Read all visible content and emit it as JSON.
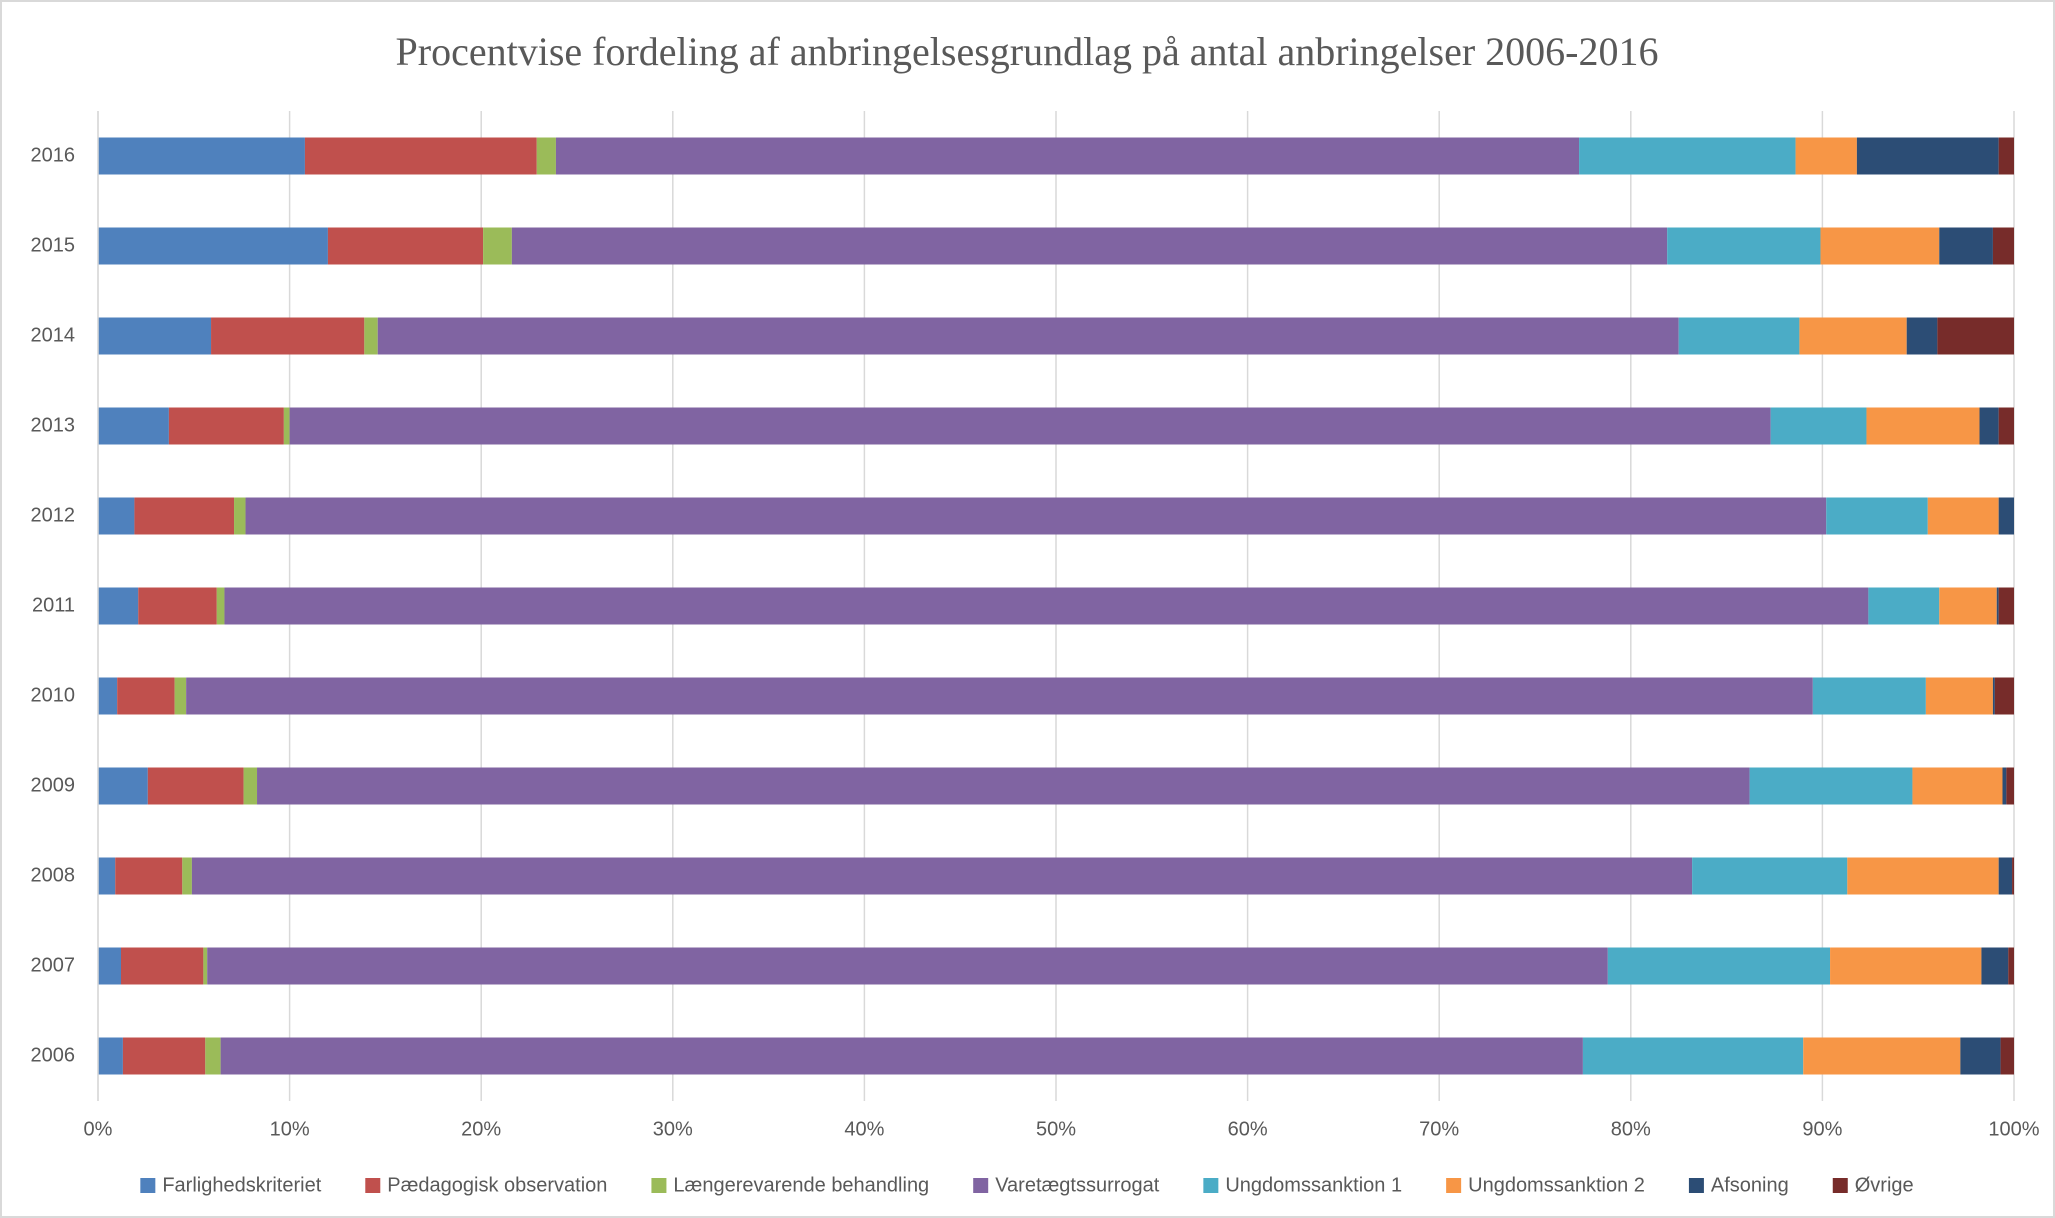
{
  "chart_data": {
    "type": "stacked-bar-horizontal",
    "title": "Procentvise fordeling af anbringelsesgrundlag på antal anbringelser 2006-2016",
    "categories": [
      "2006",
      "2007",
      "2008",
      "2009",
      "2010",
      "2011",
      "2012",
      "2013",
      "2014",
      "2015",
      "2016"
    ],
    "series": [
      {
        "name": "Farlighedskriteriet",
        "color": "#4f81bd",
        "values": [
          1.3,
          1.2,
          0.9,
          2.6,
          1.0,
          2.1,
          1.9,
          3.7,
          5.9,
          12.0,
          10.8
        ]
      },
      {
        "name": "Pædagogisk observation",
        "color": "#c0504d",
        "values": [
          4.3,
          4.3,
          3.5,
          5.0,
          3.0,
          4.1,
          5.2,
          6.0,
          8.0,
          8.1,
          12.1
        ]
      },
      {
        "name": "Længerevarende behandling",
        "color": "#9bbb59",
        "values": [
          0.8,
          0.2,
          0.5,
          0.7,
          0.6,
          0.4,
          0.6,
          0.3,
          0.7,
          1.5,
          1.0
        ]
      },
      {
        "name": "Varetægtssurrogat",
        "color": "#8064a2",
        "values": [
          71.1,
          73.1,
          78.3,
          77.9,
          84.9,
          85.8,
          82.5,
          77.3,
          67.9,
          60.3,
          53.4
        ]
      },
      {
        "name": "Ungdomssanktion 1",
        "color": "#4bacc6",
        "values": [
          11.5,
          11.6,
          8.1,
          8.5,
          5.9,
          3.7,
          5.3,
          5.0,
          6.3,
          8.0,
          11.3
        ]
      },
      {
        "name": "Ungdomssanktion 2",
        "color": "#f79646",
        "values": [
          8.2,
          7.9,
          7.9,
          4.7,
          3.5,
          3.0,
          3.7,
          5.9,
          5.6,
          6.2,
          3.2
        ]
      },
      {
        "name": "Afsoning",
        "color": "#2c4d75",
        "values": [
          2.1,
          1.4,
          0.7,
          0.2,
          0.1,
          0.1,
          0.8,
          1.0,
          1.6,
          2.8,
          7.4
        ]
      },
      {
        "name": "Øvrige",
        "color": "#772c2a",
        "values": [
          0.7,
          0.3,
          0.1,
          0.4,
          1.0,
          0.8,
          0,
          0.8,
          4.0,
          1.1,
          0.8
        ]
      }
    ],
    "xlim": [
      0,
      100
    ],
    "xticks": [
      {
        "value": 0,
        "label": "0%"
      },
      {
        "value": 10,
        "label": "10%"
      },
      {
        "value": 20,
        "label": "20%"
      },
      {
        "value": 30,
        "label": "30%"
      },
      {
        "value": 40,
        "label": "40%"
      },
      {
        "value": 50,
        "label": "50%"
      },
      {
        "value": 60,
        "label": "60%"
      },
      {
        "value": 70,
        "label": "70%"
      },
      {
        "value": 80,
        "label": "80%"
      },
      {
        "value": 90,
        "label": "90%"
      },
      {
        "value": 100,
        "label": "100%"
      }
    ],
    "grid": true,
    "legend": "bottom"
  }
}
